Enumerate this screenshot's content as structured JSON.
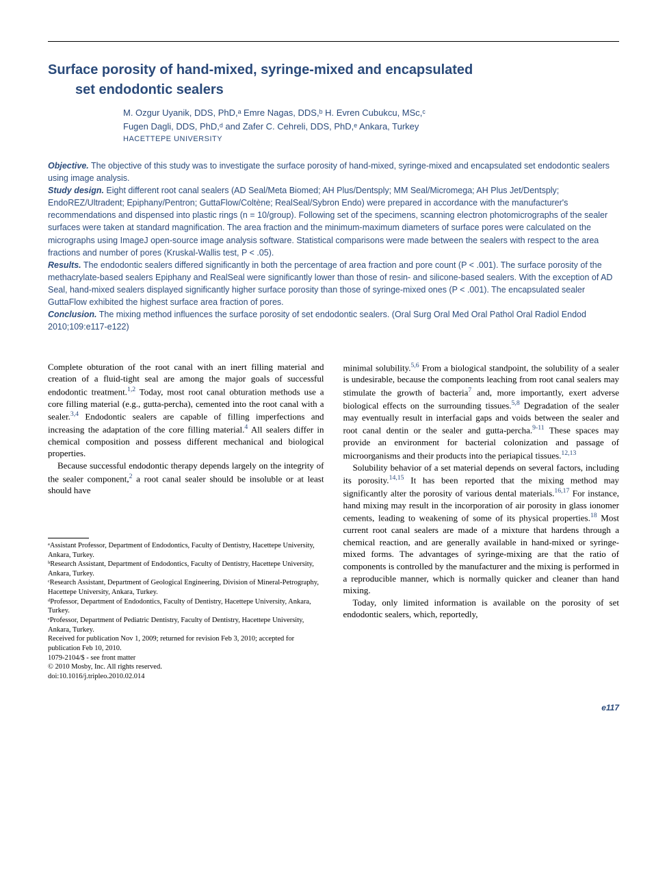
{
  "colors": {
    "accent": "#2a4a7a",
    "text": "#000000",
    "background": "#ffffff"
  },
  "typography": {
    "title_fontsize": 20,
    "author_fontsize": 13,
    "abstract_fontsize": 12.5,
    "body_fontsize": 13,
    "affil_fontsize": 10.5
  },
  "title_line1": "Surface porosity of hand-mixed, syringe-mixed and encapsulated",
  "title_line2": "set endodontic sealers",
  "authors_line1": "M. Ozgur Uyanik, DDS, PhD,ᵃ Emre Nagas, DDS,ᵇ H. Evren Cubukcu, MSc,ᶜ",
  "authors_line2": "Fugen Dagli, DDS, PhD,ᵈ and Zafer C. Cehreli, DDS, PhD,ᵉ Ankara, Turkey",
  "institution": "HACETTEPE UNIVERSITY",
  "abstract": {
    "objective_label": "Objective.",
    "objective": " The objective of this study was to investigate the surface porosity of hand-mixed, syringe-mixed and encapsulated set endodontic sealers using image analysis.",
    "design_label": "Study design.",
    "design": " Eight different root canal sealers (AD Seal/Meta Biomed; AH Plus/Dentsply; MM Seal/Micromega; AH Plus Jet/Dentsply; EndoREZ/Ultradent; Epiphany/Pentron; GuttaFlow/Coltène; RealSeal/Sybron Endo) were prepared in accordance with the manufacturer's recommendations and dispensed into plastic rings (n = 10/group). Following set of the specimens, scanning electron photomicrographs of the sealer surfaces were taken at standard magnification. The area fraction and the minimum-maximum diameters of surface pores were calculated on the micrographs using ImageJ open-source image analysis software. Statistical comparisons were made between the sealers with respect to the area fractions and number of pores (Kruskal-Wallis test, P < .05).",
    "results_label": "Results.",
    "results": " The endodontic sealers differed significantly in both the percentage of area fraction and pore count (P < .001). The surface porosity of the methacrylate-based sealers Epiphany and RealSeal were significantly lower than those of resin- and silicone-based sealers. With the exception of AD Seal, hand-mixed sealers displayed significantly higher surface porosity than those of syringe-mixed ones (P < .001). The encapsulated sealer GuttaFlow exhibited the highest surface area fraction of pores.",
    "conclusion_label": "Conclusion.",
    "conclusion": " The mixing method influences the surface porosity of set endodontic sealers. (Oral Surg Oral Med Oral Pathol Oral Radiol Endod 2010;109:e117-e122)"
  },
  "body": {
    "col1_p1_a": "Complete obturation of the root canal with an inert filling material and creation of a fluid-tight seal are among the major goals of successful endodontic treatment.",
    "col1_p1_ref1": "1,2",
    "col1_p1_b": " Today, most root canal obturation methods use a core filling material (e.g., gutta-percha), cemented into the root canal with a sealer.",
    "col1_p1_ref2": "3,4",
    "col1_p1_c": " Endodontic sealers are capable of filling imperfections and increasing the adaptation of the core filling material.",
    "col1_p1_ref3": "4",
    "col1_p1_d": " All sealers differ in chemical composition and possess different mechanical and biological properties.",
    "col1_p2_a": "Because successful endodontic therapy depends largely on the integrity of the sealer component,",
    "col1_p2_ref1": "2",
    "col1_p2_b": " a root canal sealer should be insoluble or at least should have",
    "col2_p1_a": "minimal solubility.",
    "col2_p1_ref1": "5,6",
    "col2_p1_b": " From a biological standpoint, the solubility of a sealer is undesirable, because the components leaching from root canal sealers may stimulate the growth of bacteria",
    "col2_p1_ref2": "7",
    "col2_p1_c": " and, more importantly, exert adverse biological effects on the surrounding tissues.",
    "col2_p1_ref3": "5,8",
    "col2_p1_d": " Degradation of the sealer may eventually result in interfacial gaps and voids between the sealer and root canal dentin or the sealer and gutta-percha.",
    "col2_p1_ref4": "9-11",
    "col2_p1_e": " These spaces may provide an environment for bacterial colonization and passage of microorganisms and their products into the periapical tissues.",
    "col2_p1_ref5": "12,13",
    "col2_p2_a": "Solubility behavior of a set material depends on several factors, including its porosity.",
    "col2_p2_ref1": "14,15",
    "col2_p2_b": " It has been reported that the mixing method may significantly alter the porosity of various dental materials.",
    "col2_p2_ref2": "16,17",
    "col2_p2_c": " For instance, hand mixing may result in the incorporation of air porosity in glass ionomer cements, leading to weakening of some of its physical properties.",
    "col2_p2_ref3": "18",
    "col2_p2_d": " Most current root canal sealers are made of a mixture that hardens through a chemical reaction, and are generally available in hand-mixed or syringe-mixed forms. The advantages of syringe-mixing are that the ratio of components is controlled by the manufacturer and the mixing is performed in a reproducible manner, which is normally quicker and cleaner than hand mixing.",
    "col2_p3_a": "Today, only limited information is available on the porosity of set endodontic sealers, which, reportedly,"
  },
  "affiliations": {
    "a": "ᵃAssistant Professor, Department of Endodontics, Faculty of Dentistry, Hacettepe University, Ankara, Turkey.",
    "b": "ᵇResearch Assistant, Department of Endodontics, Faculty of Dentistry, Hacettepe University, Ankara, Turkey.",
    "c": "ᶜResearch Assistant, Department of Geological Engineering, Division of Mineral-Petrography, Hacettepe University, Ankara, Turkey.",
    "d": "ᵈProfessor, Department of Endodontics, Faculty of Dentistry, Hacettepe University, Ankara, Turkey.",
    "e": "ᵉProfessor, Department of Pediatric Dentistry, Faculty of Dentistry, Hacettepe University, Ankara, Turkey.",
    "received": "Received for publication Nov 1, 2009; returned for revision Feb 3, 2010; accepted for publication Feb 10, 2010.",
    "issn": "1079-2104/$ - see front matter",
    "copyright": "© 2010 Mosby, Inc. All rights reserved.",
    "doi": "doi:10.1016/j.tripleo.2010.02.014"
  },
  "page_number": "e117"
}
